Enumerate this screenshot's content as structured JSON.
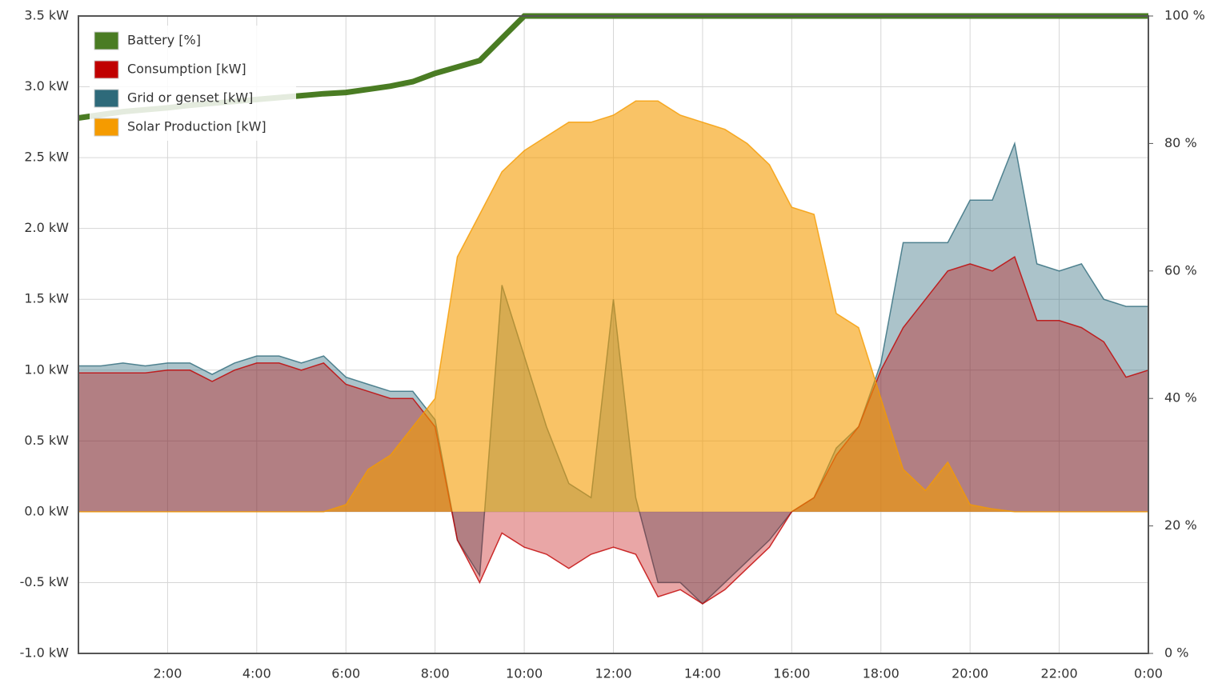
{
  "chart_data": {
    "type": "area",
    "x": [
      0,
      0.5,
      1,
      1.5,
      2,
      2.5,
      3,
      3.5,
      4,
      4.5,
      5,
      5.5,
      6,
      6.5,
      7,
      7.5,
      8,
      8.5,
      9,
      9.5,
      10,
      10.5,
      11,
      11.5,
      12,
      12.5,
      13,
      13.5,
      14,
      14.5,
      15,
      15.5,
      16,
      16.5,
      17,
      17.5,
      18,
      18.5,
      19,
      19.5,
      20,
      20.5,
      21,
      21.5,
      22,
      22.5,
      23,
      23.5,
      24
    ],
    "series": [
      {
        "name": "Battery [%]",
        "color": "#4a7c23",
        "axis": "y2",
        "kind": "line",
        "values": [
          84,
          84.5,
          85,
          85.3,
          85.6,
          86,
          86.3,
          86.6,
          86.9,
          87.2,
          87.5,
          87.8,
          88,
          88.5,
          89,
          89.7,
          91,
          92,
          93,
          96.5,
          100,
          100,
          100,
          100,
          100,
          100,
          100,
          100,
          100,
          100,
          100,
          100,
          100,
          100,
          100,
          100,
          100,
          100,
          100,
          100,
          100,
          100,
          100,
          100,
          100,
          100,
          100,
          100,
          100
        ]
      },
      {
        "name": "Consumption [kW]",
        "color": "#c00000",
        "kind": "area",
        "values": [
          0.98,
          0.98,
          0.98,
          0.98,
          1.0,
          1.0,
          0.92,
          1.0,
          1.05,
          1.05,
          1.0,
          1.05,
          0.9,
          0.85,
          0.8,
          0.8,
          0.6,
          -0.2,
          -0.5,
          -0.15,
          -0.25,
          -0.3,
          -0.4,
          -0.3,
          -0.25,
          -0.3,
          -0.6,
          -0.55,
          -0.65,
          -0.55,
          -0.4,
          -0.25,
          0,
          0.1,
          0.4,
          0.6,
          1.0,
          1.3,
          1.5,
          1.7,
          1.75,
          1.7,
          1.8,
          1.35,
          1.35,
          1.3,
          1.2,
          0.95,
          1.0
        ]
      },
      {
        "name": "Grid or genset [kW]",
        "color": "#2e6a7a",
        "kind": "area",
        "values": [
          1.03,
          1.03,
          1.05,
          1.03,
          1.05,
          1.05,
          0.97,
          1.05,
          1.1,
          1.1,
          1.05,
          1.1,
          0.95,
          0.9,
          0.85,
          0.85,
          0.65,
          -0.2,
          -0.45,
          1.6,
          1.1,
          0.6,
          0.2,
          0.1,
          1.5,
          0.1,
          -0.5,
          -0.5,
          -0.65,
          -0.5,
          -0.35,
          -0.2,
          0,
          0.1,
          0.45,
          0.6,
          1.05,
          1.9,
          1.9,
          1.9,
          2.2,
          2.2,
          2.6,
          1.75,
          1.7,
          1.75,
          1.5,
          1.45,
          1.45
        ]
      },
      {
        "name": "Solar Production [kW]",
        "color": "#f59b00",
        "kind": "area",
        "values": [
          0,
          0,
          0,
          0,
          0,
          0,
          0,
          0,
          0,
          0,
          0,
          0,
          0.05,
          0.3,
          0.4,
          0.6,
          0.8,
          1.8,
          2.1,
          2.4,
          2.55,
          2.65,
          2.75,
          2.75,
          2.8,
          2.9,
          2.9,
          2.8,
          2.75,
          2.7,
          2.6,
          2.45,
          2.15,
          2.1,
          1.4,
          1.3,
          0.8,
          0.3,
          0.15,
          0.35,
          0.05,
          0.02,
          0,
          0,
          0,
          0,
          0,
          0,
          0
        ]
      }
    ],
    "xlim": [
      0,
      24
    ],
    "xticks": [
      {
        "value": 2,
        "label": "2:00"
      },
      {
        "value": 4,
        "label": "4:00"
      },
      {
        "value": 6,
        "label": "6:00"
      },
      {
        "value": 8,
        "label": "8:00"
      },
      {
        "value": 10,
        "label": "10:00"
      },
      {
        "value": 12,
        "label": "12:00"
      },
      {
        "value": 14,
        "label": "14:00"
      },
      {
        "value": 16,
        "label": "16:00"
      },
      {
        "value": 18,
        "label": "18:00"
      },
      {
        "value": 20,
        "label": "20:00"
      },
      {
        "value": 22,
        "label": "22:00"
      },
      {
        "value": 24,
        "label": "0:00"
      }
    ],
    "ylim": [
      -1.0,
      3.5
    ],
    "yticks": [
      {
        "value": -1.0,
        "label": "-1.0 kW"
      },
      {
        "value": -0.5,
        "label": "-0.5 kW"
      },
      {
        "value": 0,
        "label": "0.0 kW"
      },
      {
        "value": 0.5,
        "label": "0.5 kW"
      },
      {
        "value": 1.0,
        "label": "1.0 kW"
      },
      {
        "value": 1.5,
        "label": "1.5 kW"
      },
      {
        "value": 2.0,
        "label": "2.0 kW"
      },
      {
        "value": 2.5,
        "label": "2.5 kW"
      },
      {
        "value": 3.0,
        "label": "3.0 kW"
      },
      {
        "value": 3.5,
        "label": "3.5 kW"
      }
    ],
    "y2lim": [
      0,
      100
    ],
    "y2ticks": [
      {
        "value": 0,
        "label": "0 %"
      },
      {
        "value": 20,
        "label": "20 %"
      },
      {
        "value": 40,
        "label": "40 %"
      },
      {
        "value": 60,
        "label": "60 %"
      },
      {
        "value": 80,
        "label": "80 %"
      },
      {
        "value": 100,
        "label": "100 %"
      }
    ],
    "grid": true,
    "legend": "upper left"
  }
}
